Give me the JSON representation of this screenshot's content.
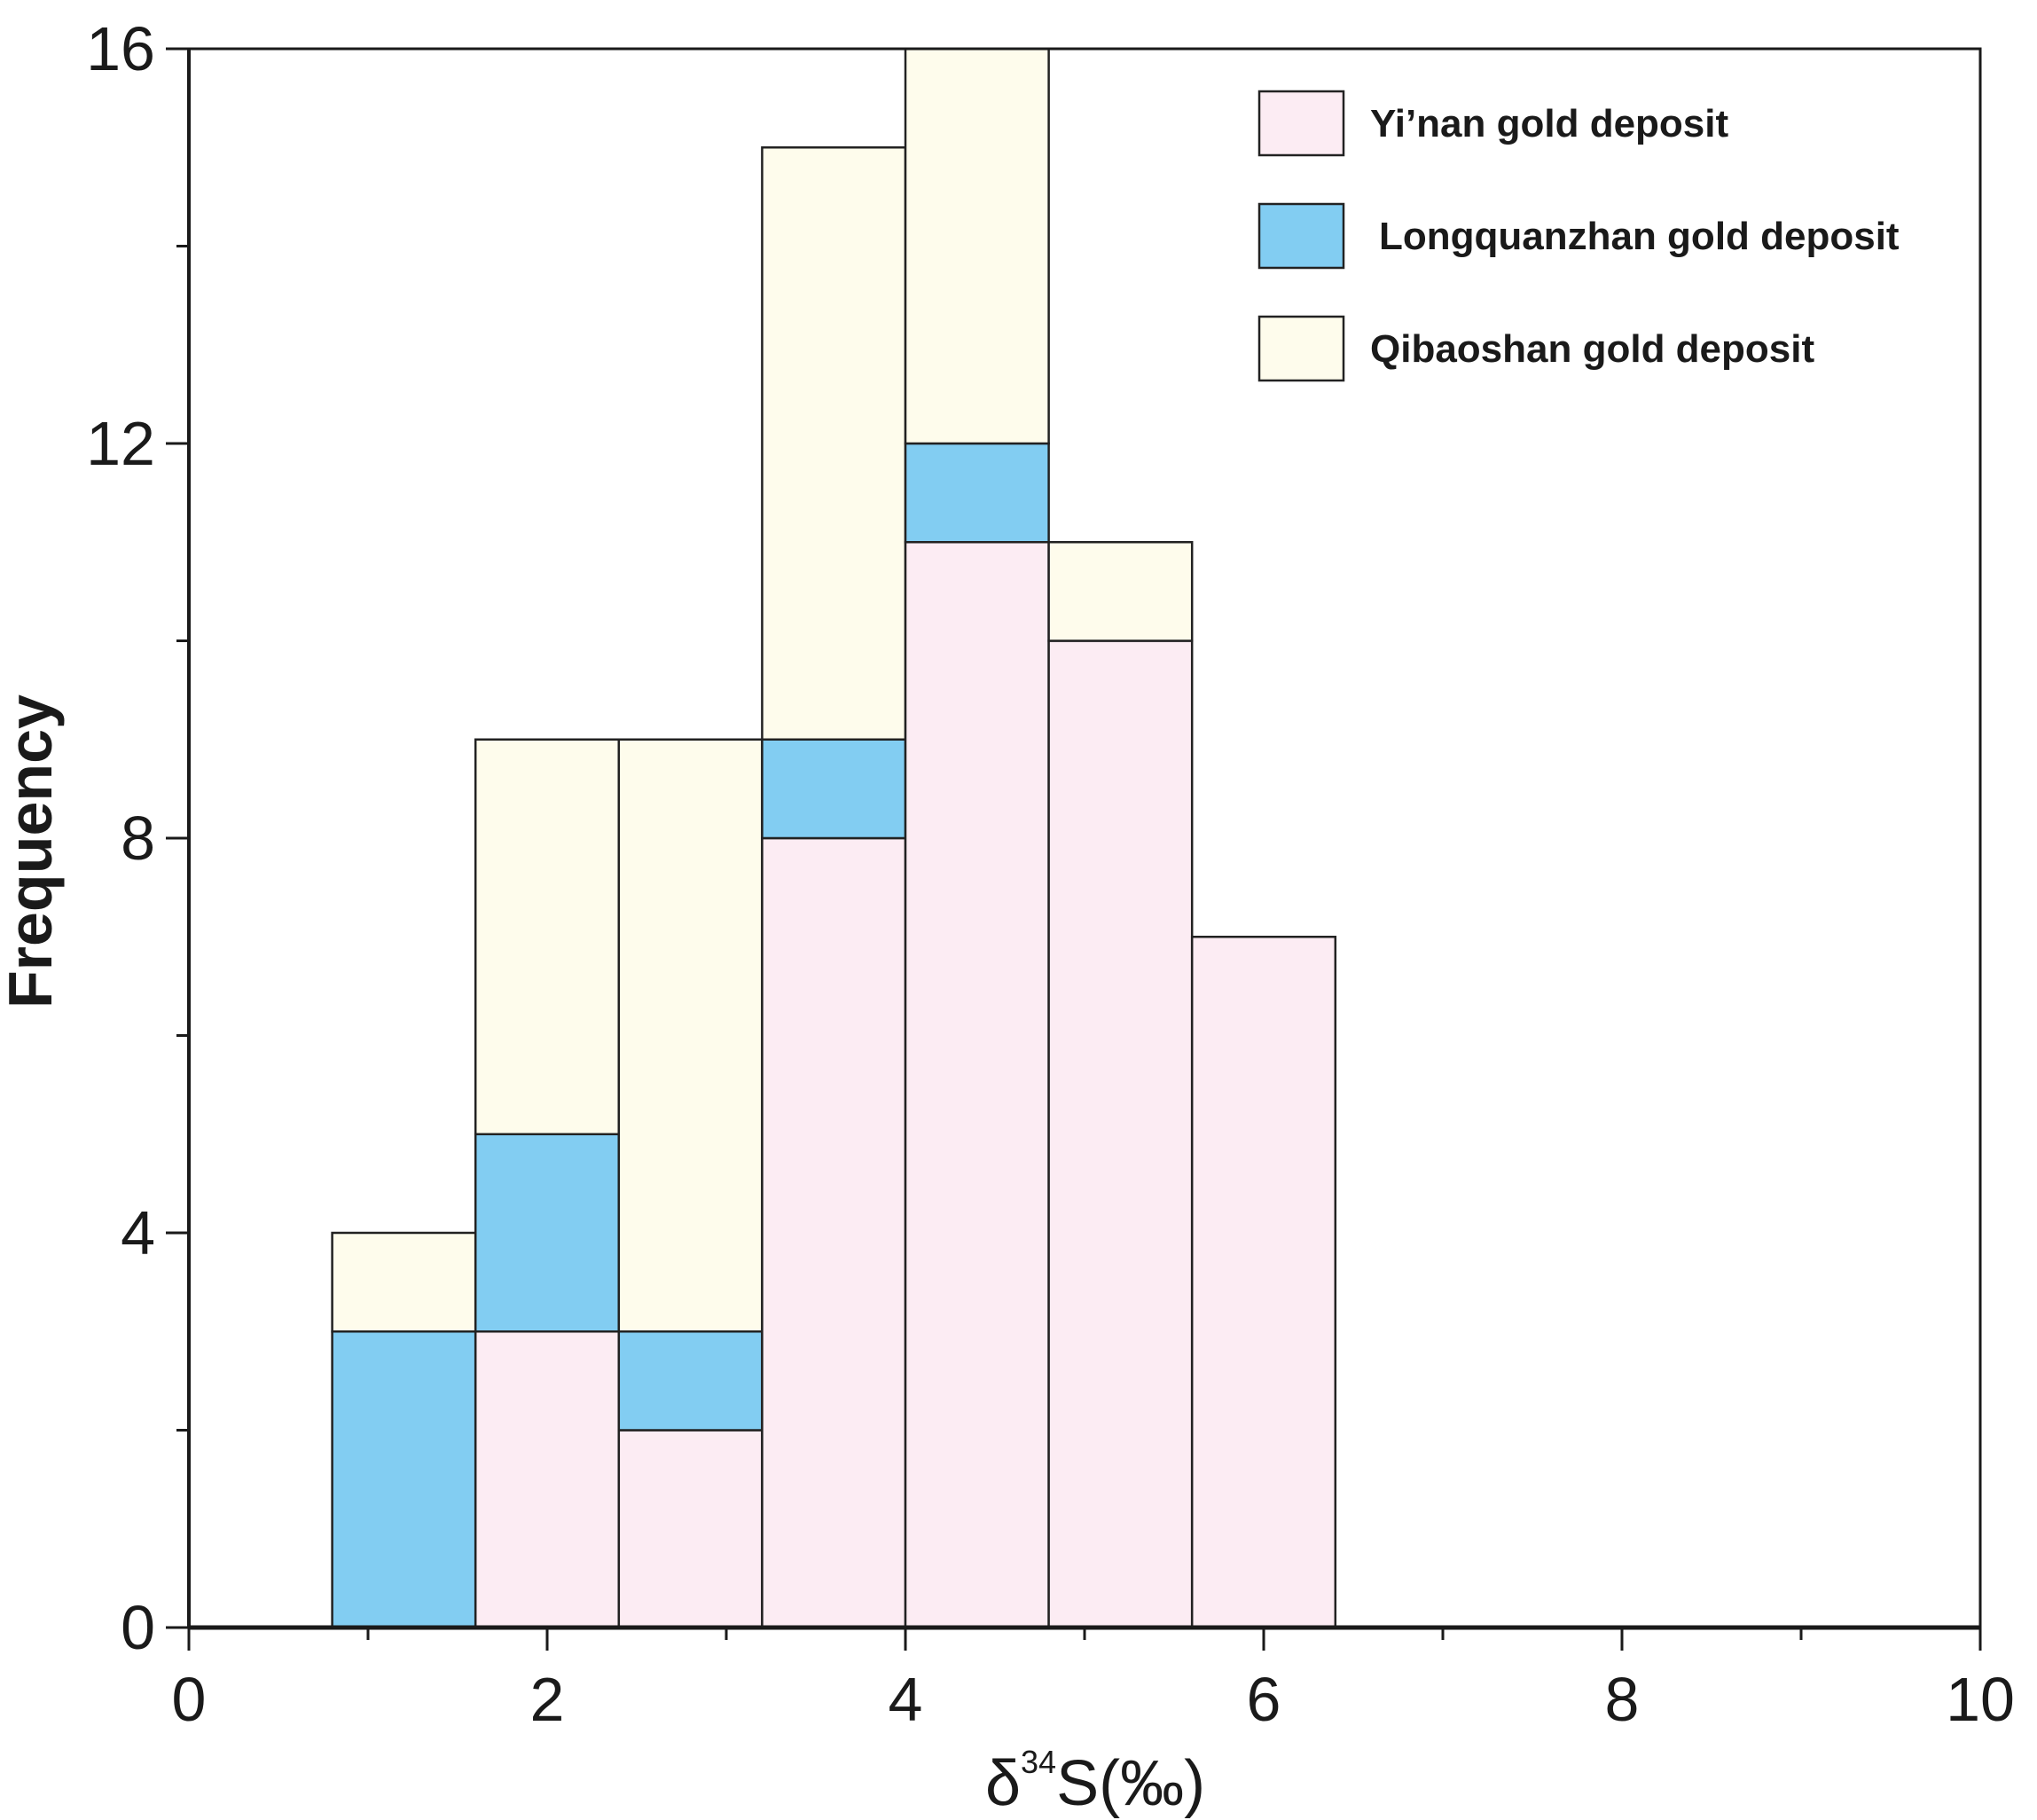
{
  "chart_data": {
    "type": "bar",
    "stacked": true,
    "bins": [
      [
        0.8,
        1.6
      ],
      [
        1.6,
        2.4
      ],
      [
        2.4,
        3.2
      ],
      [
        3.2,
        4.0
      ],
      [
        4.0,
        4.8
      ],
      [
        4.8,
        5.6
      ],
      [
        5.6,
        6.4
      ]
    ],
    "series": [
      {
        "name": "Yi’nan gold deposit",
        "color": "#fcecf3",
        "values": [
          0,
          3,
          2,
          8,
          11,
          10,
          7
        ]
      },
      {
        "name": "Longquanzhan gold deposit",
        "color": "#82cdf2",
        "values": [
          3,
          2,
          1,
          1,
          1,
          0,
          0
        ]
      },
      {
        "name": "Qibaoshan gold deposit",
        "color": "#fefcec",
        "values": [
          1,
          4,
          6,
          6,
          4,
          1,
          0
        ]
      }
    ],
    "xlabel_main": "δ",
    "xlabel_sup": "34",
    "xlabel_rest": "S(‰)",
    "ylabel": "Frequency",
    "xlim": [
      0,
      10
    ],
    "ylim": [
      0,
      16
    ],
    "xticks": [
      0,
      2,
      4,
      6,
      8,
      10
    ],
    "yticks": [
      0,
      4,
      8,
      12,
      16
    ],
    "legend_position": "top-right"
  }
}
